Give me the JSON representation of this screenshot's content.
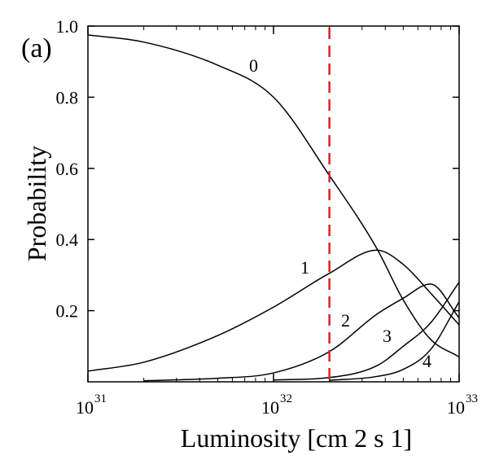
{
  "chart_data": {
    "type": "line",
    "panel_label": "(a)",
    "xlabel": "Luminosity [cm  2 s  1]",
    "ylabel": "Probability",
    "x_scale": "log",
    "xlim": [
      1e+31,
      1e+33
    ],
    "ylim": [
      0,
      1.0
    ],
    "x_ticks": [
      {
        "base": "10",
        "exp": "31"
      },
      {
        "base": "10",
        "exp": "32"
      },
      {
        "base": "10",
        "exp": "33"
      }
    ],
    "y_ticks": [
      "1.0",
      "0.8",
      "0.6",
      "0.4",
      "0.2"
    ],
    "y_tick_values": [
      1.0,
      0.8,
      0.6,
      0.4,
      0.2
    ],
    "vertical_line": {
      "x": 2e+32,
      "color": "#e02020",
      "style": "dashed"
    },
    "grid": false,
    "x": [
      1e+31,
      2e+31,
      5e+31,
      1e+32,
      2e+32,
      3.6e+32,
      5e+32,
      7e+32,
      1e+33
    ],
    "series": [
      {
        "name": "0",
        "values": [
          0.975,
          0.955,
          0.89,
          0.8,
          0.58,
          0.375,
          0.23,
          0.12,
          0.07
        ]
      },
      {
        "name": "1",
        "values": [
          0.03,
          0.055,
          0.13,
          0.21,
          0.305,
          0.37,
          0.33,
          0.25,
          0.16
        ]
      },
      {
        "name": "2",
        "values": [
          0.0,
          0.003,
          0.01,
          0.025,
          0.085,
          0.19,
          0.235,
          0.275,
          0.18
        ]
      },
      {
        "name": "3",
        "values": [
          0.0,
          0.0,
          0.0,
          0.005,
          0.012,
          0.045,
          0.1,
          0.165,
          0.28
        ]
      },
      {
        "name": "4",
        "values": [
          0.0,
          0.0,
          0.0,
          0.0,
          0.004,
          0.015,
          0.035,
          0.09,
          0.225
        ]
      }
    ],
    "colors": {
      "axis": "#000000",
      "curve": "#000000",
      "marker_line": "#e02020"
    }
  }
}
